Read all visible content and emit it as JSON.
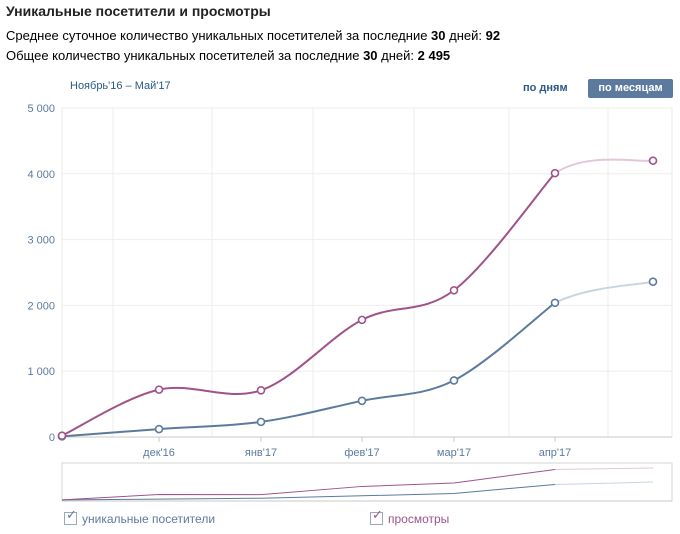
{
  "header": {
    "title": "Уникальные посетители и просмотры",
    "stat1_prefix": "Среднее суточное количество уникальных посетителей за последние ",
    "stat1_days": "30",
    "stat1_mid": " дней: ",
    "stat1_value": "92",
    "stat2_prefix": "Общее количество уникальных посетителей за последние ",
    "stat2_days": "30",
    "stat2_mid": " дней: ",
    "stat2_value": "2 495"
  },
  "controls": {
    "period": "Ноябрь'16 – Май'17",
    "by_days": "по дням",
    "by_months": "по месяцам"
  },
  "colors": {
    "visitors": "#5b7a9e",
    "views": "#a0538a",
    "visitors_faded": "#c9d4e0",
    "views_faded": "#e3c6d9"
  },
  "chart_data": {
    "type": "line",
    "x": [
      "ноя'16",
      "дек'16",
      "янв'17",
      "фев'17",
      "мар'17",
      "апр'17",
      "май'17"
    ],
    "x_tick_labels": [
      "дек'16",
      "янв'17",
      "фев'17",
      "мар'17",
      "апр'17"
    ],
    "y_tick_labels": [
      "0",
      "1 000",
      "2 000",
      "3 000",
      "4 000",
      "5 000"
    ],
    "ylim": [
      0,
      5000
    ],
    "series": [
      {
        "name": "уникальные посетители",
        "values": [
          10,
          120,
          230,
          550,
          860,
          2040,
          2360
        ]
      },
      {
        "name": "просмотры",
        "values": [
          20,
          720,
          710,
          1780,
          2230,
          4010,
          4200
        ]
      }
    ],
    "grid": true,
    "legend": "bottom"
  },
  "legend": {
    "visitors": "уникальные посетители",
    "views": "просмотры",
    "check": "✓"
  }
}
